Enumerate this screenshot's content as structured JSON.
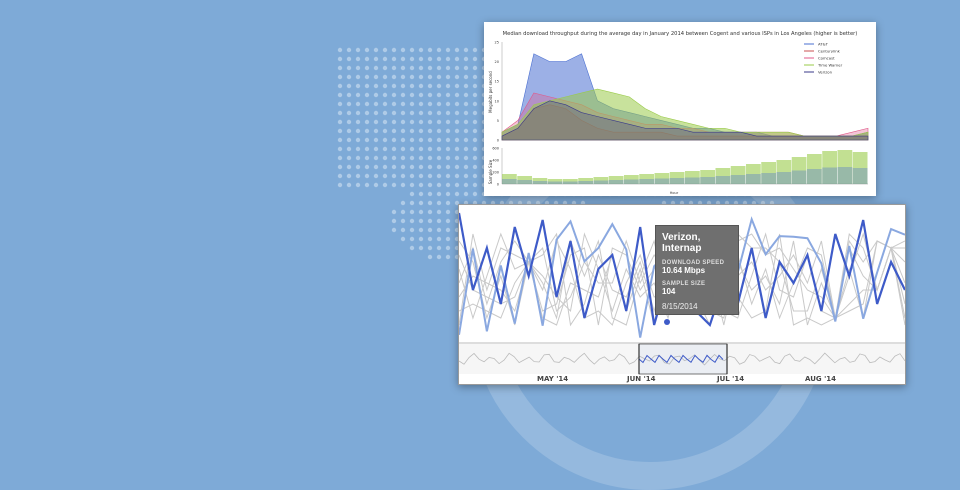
{
  "background": {
    "color": "#7eaad7"
  },
  "top_chart": {
    "title": "Median download throughput during the average day in January 2014 between Cogent and various ISPs in Los Angeles (higher is better)",
    "ylabel": "Megabits per second",
    "ylabel2": "Sample Size",
    "xlabel": "Hour",
    "yticks": [
      "25",
      "20",
      "15",
      "10",
      "5",
      "0"
    ],
    "yticks2": [
      "600",
      "400",
      "200",
      "0"
    ],
    "legend": [
      {
        "name": "AT&T",
        "color": "#4a6fd1"
      },
      {
        "name": "Centurylink",
        "color": "#c85050"
      },
      {
        "name": "Comcast",
        "color": "#e05a8a"
      },
      {
        "name": "Time Warner",
        "color": "#9acb4a"
      },
      {
        "name": "Verizon",
        "color": "#3a3a8a"
      }
    ]
  },
  "chart_data": [
    {
      "type": "area",
      "title": "Median download throughput during the average day in January 2014 between Cogent and various ISPs in Los Angeles (higher is better)",
      "ylabel": "Megabits per second",
      "xlabel": "Hour",
      "ylim": [
        0,
        25
      ],
      "x": [
        0,
        1,
        2,
        3,
        4,
        5,
        6,
        7,
        8,
        9,
        10,
        11,
        12,
        13,
        14,
        15,
        16,
        17,
        18,
        19,
        20,
        21,
        22,
        23
      ],
      "series": [
        {
          "name": "AT&T",
          "values": [
            2,
            4,
            22,
            20,
            20,
            22,
            10,
            8,
            7,
            6,
            5,
            4,
            3,
            3,
            2,
            2,
            2,
            1,
            1,
            1,
            1,
            1,
            1,
            2
          ]
        },
        {
          "name": "Centurylink",
          "values": [
            1,
            3,
            8,
            9,
            8,
            5,
            3,
            2,
            2,
            2,
            2,
            1,
            1,
            1,
            1,
            1,
            1,
            1,
            1,
            1,
            1,
            1,
            1,
            1
          ]
        },
        {
          "name": "Comcast",
          "values": [
            2,
            5,
            12,
            11,
            10,
            9,
            7,
            6,
            5,
            4,
            4,
            3,
            3,
            2,
            2,
            2,
            2,
            2,
            2,
            1,
            1,
            1,
            2,
            3
          ]
        },
        {
          "name": "Time Warner",
          "values": [
            2,
            4,
            9,
            10,
            11,
            12,
            13,
            12,
            11,
            8,
            6,
            5,
            4,
            3,
            3,
            2,
            2,
            2,
            2,
            1,
            1,
            1,
            1,
            2
          ]
        },
        {
          "name": "Verizon",
          "values": [
            1,
            3,
            8,
            10,
            9,
            7,
            6,
            5,
            4,
            3,
            3,
            3,
            2,
            2,
            2,
            2,
            1,
            1,
            1,
            1,
            1,
            1,
            1,
            1
          ]
        }
      ]
    },
    {
      "type": "line",
      "x_ticks": [
        "MAY '14",
        "JUN '14",
        "JUL '14",
        "AUG '14"
      ],
      "series": [
        {
          "name": "Verizon, Internap",
          "values": [
            18,
            7,
            13,
            5,
            16,
            9,
            17,
            6,
            14,
            3,
            10,
            12,
            4,
            16,
            2,
            9,
            11,
            4,
            2,
            8,
            5,
            13,
            3,
            11,
            8,
            12,
            4,
            15,
            9,
            17,
            5,
            11,
            7
          ]
        }
      ]
    }
  ],
  "tooltip": {
    "title": "Verizon, Internap",
    "speed_label": "DOWNLOAD SPEED",
    "speed_value": "10.64 Mbps",
    "sample_label": "SAMPLE SIZE",
    "sample_value": "104",
    "date": "8/15/2014"
  },
  "bottom_axis": [
    "MAY '14",
    "JUN '14",
    "JUL '14",
    "AUG '14"
  ]
}
